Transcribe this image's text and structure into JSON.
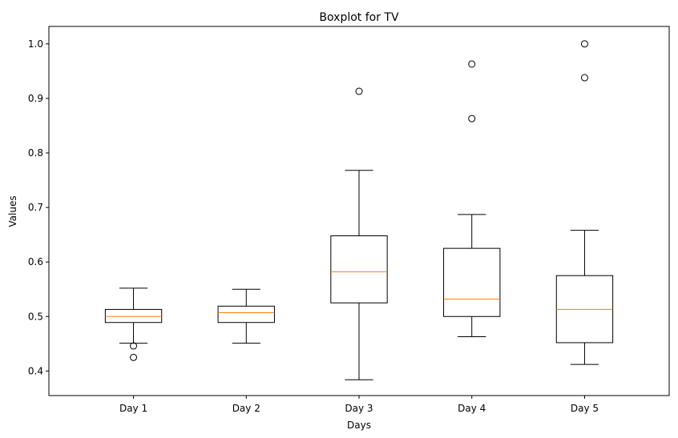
{
  "chart_data": {
    "type": "boxplot",
    "title": "Boxplot for TV",
    "xlabel": "Days",
    "ylabel": "Values",
    "categories": [
      "Day 1",
      "Day 2",
      "Day 3",
      "Day 4",
      "Day 5"
    ],
    "ylim": [
      0.355,
      1.032
    ],
    "yticks": [
      0.4,
      0.5,
      0.6,
      0.7,
      0.8,
      0.9,
      1.0
    ],
    "ytick_labels": [
      "0.4",
      "0.5",
      "0.6",
      "0.7",
      "0.8",
      "0.9",
      "1.0"
    ],
    "grid": false,
    "legend": "none",
    "colors": {
      "box": "#000000",
      "median": "#ff7f0e",
      "flier": "#000000"
    },
    "boxes": [
      {
        "category": "Day 1",
        "whisker_low": 0.451,
        "q1": 0.489,
        "median": 0.5,
        "q3": 0.513,
        "whisker_high": 0.552,
        "fliers": [
          0.446,
          0.425
        ]
      },
      {
        "category": "Day 2",
        "whisker_low": 0.451,
        "q1": 0.489,
        "median": 0.507,
        "q3": 0.519,
        "whisker_high": 0.55,
        "fliers": []
      },
      {
        "category": "Day 3",
        "whisker_low": 0.384,
        "q1": 0.525,
        "median": 0.582,
        "q3": 0.648,
        "whisker_high": 0.768,
        "fliers": [
          0.913
        ]
      },
      {
        "category": "Day 4",
        "whisker_low": 0.463,
        "q1": 0.5,
        "median": 0.532,
        "q3": 0.625,
        "whisker_high": 0.687,
        "fliers": [
          0.963,
          0.863
        ]
      },
      {
        "category": "Day 5",
        "whisker_low": 0.412,
        "q1": 0.452,
        "median": 0.513,
        "q3": 0.575,
        "whisker_high": 0.658,
        "fliers": [
          1.0,
          0.938
        ]
      }
    ]
  }
}
